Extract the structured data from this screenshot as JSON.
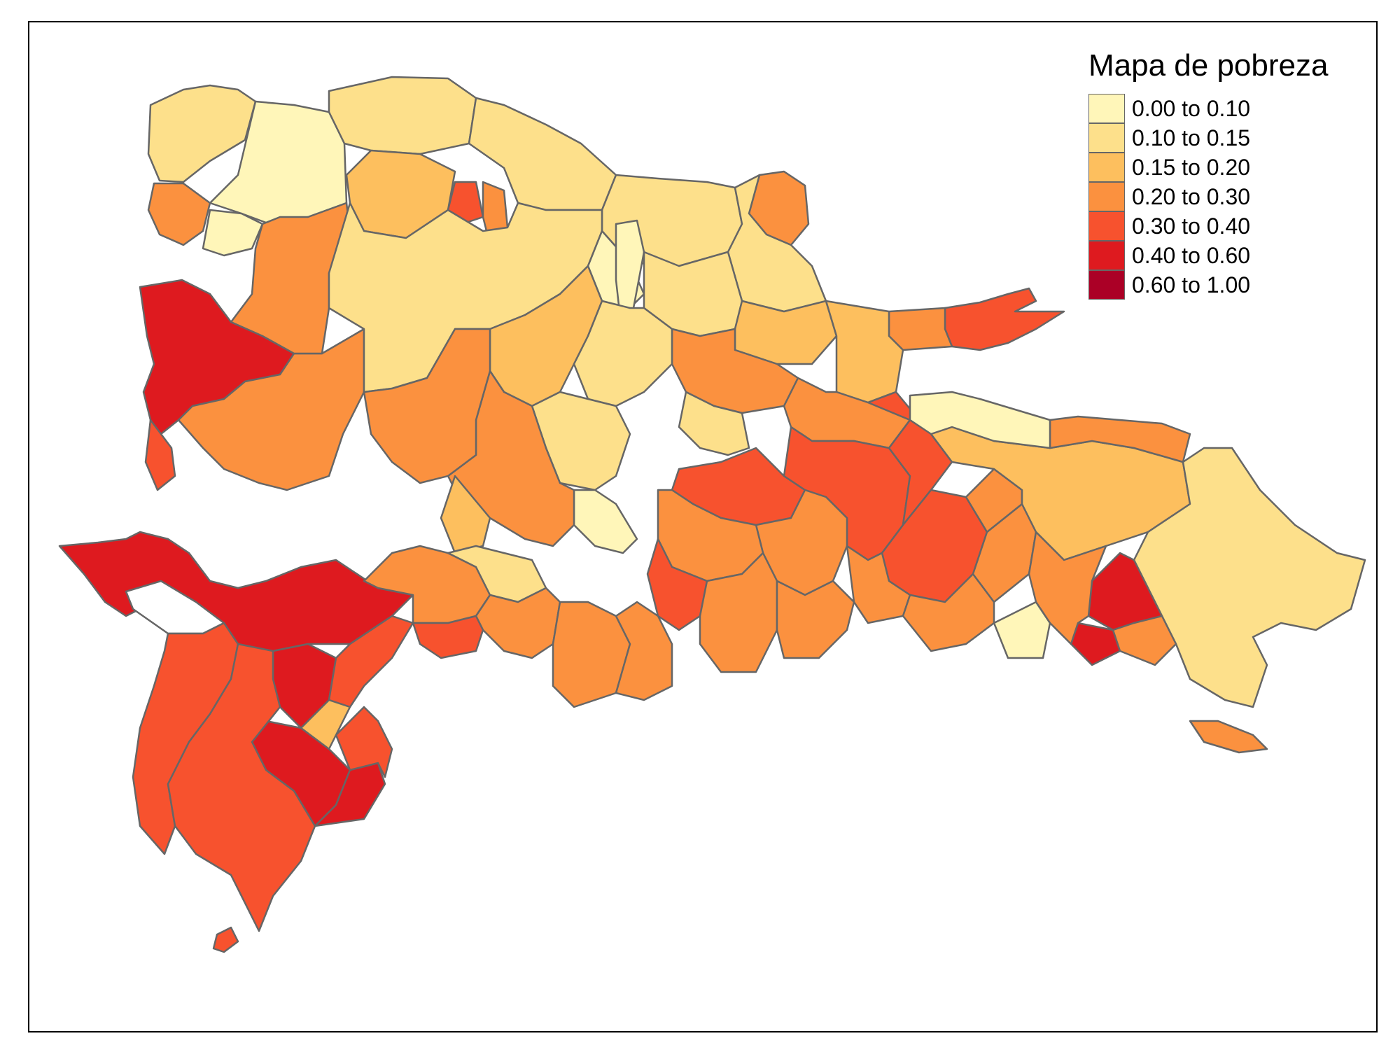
{
  "legend": {
    "title": "Mapa de pobreza",
    "classes": [
      {
        "label": "0.00 to 0.10",
        "color": "#FFF6B9"
      },
      {
        "label": "0.10 to 0.15",
        "color": "#FDE08B"
      },
      {
        "label": "0.15 to 0.20",
        "color": "#FDBF5E"
      },
      {
        "label": "0.20 to 0.30",
        "color": "#FB913F"
      },
      {
        "label": "0.30 to 0.40",
        "color": "#F7522E"
      },
      {
        "label": "0.40 to 0.60",
        "color": "#DE1A1F"
      },
      {
        "label": "0.60 to 1.00",
        "color": "#AB0026"
      }
    ]
  },
  "colors": {
    "border": "#666666",
    "background": "#FFFFFF"
  }
}
